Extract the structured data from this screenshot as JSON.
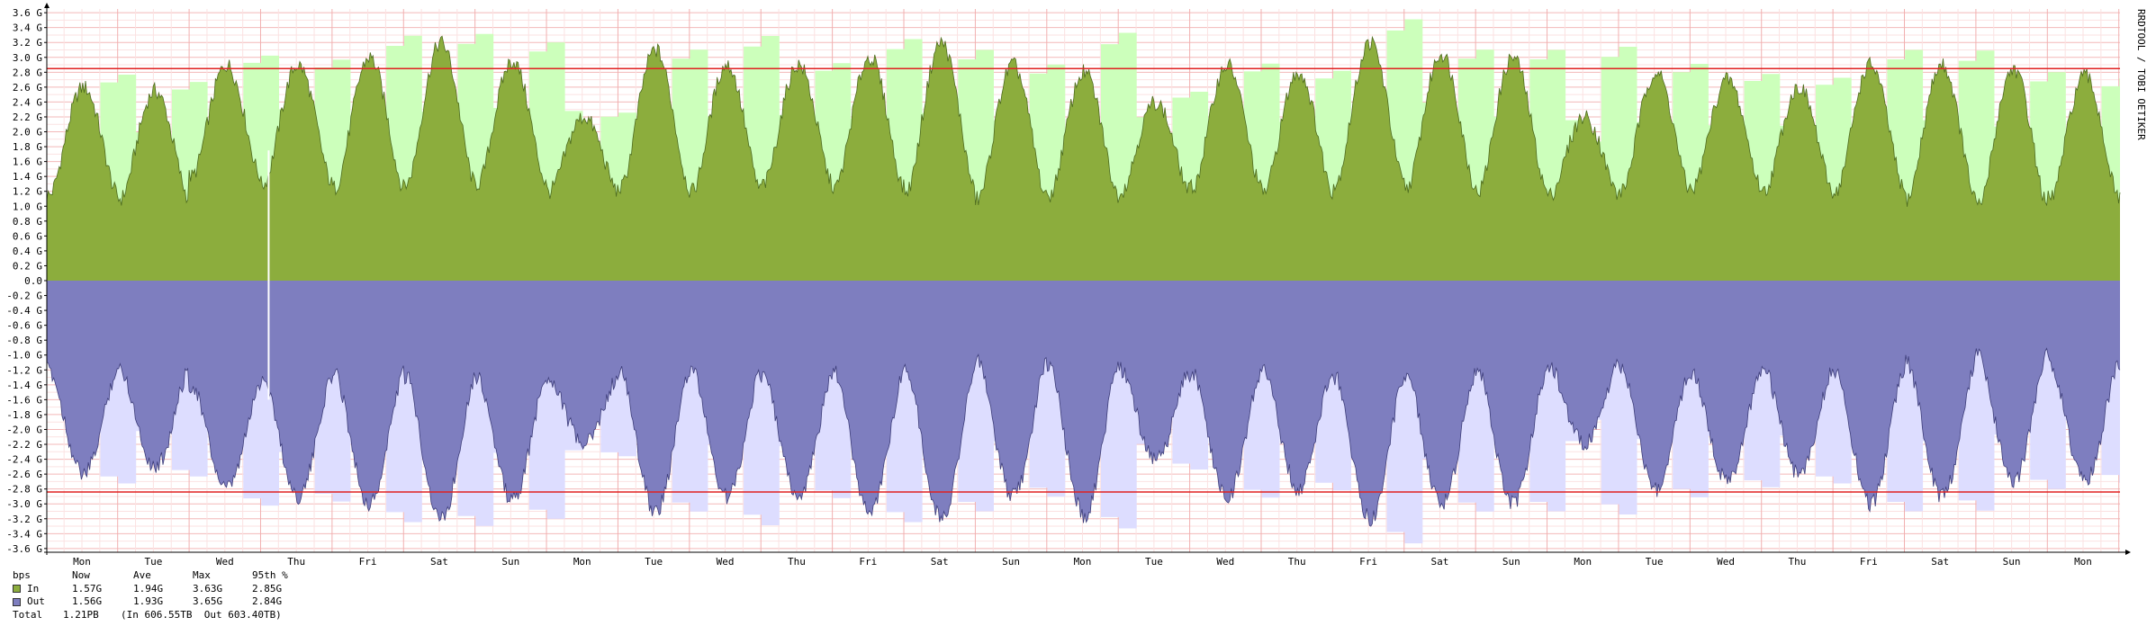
{
  "chart_data": {
    "type": "area",
    "unit": "bps",
    "y_ticks": [
      "3.6 G",
      "3.4 G",
      "3.2 G",
      "3.0 G",
      "2.8 G",
      "2.6 G",
      "2.4 G",
      "2.2 G",
      "2.0 G",
      "1.8 G",
      "1.6 G",
      "1.4 G",
      "1.2 G",
      "1.0 G",
      "0.8 G",
      "0.6 G",
      "0.4 G",
      "0.2 G",
      "0.0",
      "-0.2 G",
      "-0.4 G",
      "-0.6 G",
      "-0.8 G",
      "-1.0 G",
      "-1.2 G",
      "-1.4 G",
      "-1.6 G",
      "-1.8 G",
      "-2.0 G",
      "-2.2 G",
      "-2.4 G",
      "-2.6 G",
      "-2.8 G",
      "-3.0 G",
      "-3.2 G",
      "-3.4 G",
      "-3.6 G"
    ],
    "ylim": [
      -3.65,
      3.65
    ],
    "x_ticks": [
      "Mon",
      "Tue",
      "Wed",
      "Thu",
      "Fri",
      "Sat",
      "Sun",
      "Mon",
      "Tue",
      "Wed",
      "Thu",
      "Fri",
      "Sat",
      "Sun",
      "Mon",
      "Tue",
      "Wed",
      "Thu",
      "Fri",
      "Sat",
      "Sun",
      "Mon",
      "Tue",
      "Wed",
      "Thu",
      "Fri",
      "Sat",
      "Sun",
      "Mon"
    ],
    "days": 29.2,
    "percentile_lines": {
      "in": 2.85,
      "out": -2.84
    },
    "series": [
      {
        "name": "In",
        "color": "#8cad3d",
        "max_color": "#ccffbb",
        "daily_peak": [
          2.6,
          2.55,
          2.9,
          2.9,
          3.0,
          3.2,
          2.95,
          2.2,
          3.1,
          2.9,
          2.9,
          3.0,
          3.2,
          2.9,
          2.8,
          2.4,
          2.9,
          2.8,
          3.2,
          3.05,
          3.0,
          2.2,
          2.8,
          2.7,
          2.6,
          2.9,
          2.9,
          2.85,
          2.75
        ],
        "daily_trough": [
          1.15,
          1.1,
          1.4,
          1.3,
          1.25,
          1.3,
          1.3,
          1.2,
          1.25,
          1.2,
          1.3,
          1.25,
          1.2,
          1.1,
          1.15,
          1.2,
          1.25,
          1.2,
          1.3,
          1.25,
          1.2,
          1.15,
          1.2,
          1.25,
          1.2,
          1.2,
          1.1,
          1.0,
          1.1
        ],
        "daily_max": [
          2.85,
          2.75,
          3.1,
          3.05,
          3.4,
          3.42,
          3.3,
          2.3,
          3.2,
          3.4,
          3.0,
          3.35,
          3.2,
          3.0,
          3.45,
          2.6,
          3.0,
          2.9,
          3.63,
          3.2,
          3.2,
          3.25,
          3.0,
          2.85,
          2.8,
          3.2,
          3.2,
          2.9,
          2.8
        ]
      },
      {
        "name": "Out",
        "color": "#7e7ebf",
        "max_color": "#ddddff",
        "daily_peak": [
          -2.6,
          -2.5,
          -2.8,
          -2.9,
          -3.0,
          -3.2,
          -2.95,
          -2.2,
          -3.1,
          -2.9,
          -2.9,
          -3.1,
          -3.2,
          -2.9,
          -3.15,
          -2.4,
          -2.9,
          -2.8,
          -3.2,
          -3.0,
          -3.0,
          -2.2,
          -2.8,
          -2.7,
          -2.6,
          -3.0,
          -2.9,
          -2.7,
          -2.7
        ],
        "daily_trough": [
          -1.2,
          -1.2,
          -1.4,
          -1.3,
          -1.25,
          -1.3,
          -1.3,
          -1.3,
          -1.25,
          -1.2,
          -1.3,
          -1.25,
          -1.2,
          -1.1,
          -1.15,
          -1.2,
          -1.25,
          -1.2,
          -1.3,
          -1.25,
          -1.2,
          -1.15,
          -1.2,
          -1.25,
          -1.2,
          -1.2,
          -1.1,
          -1.0,
          -1.1
        ],
        "daily_max": [
          -2.8,
          -2.7,
          -3.1,
          -3.05,
          -3.35,
          -3.4,
          -3.3,
          -2.4,
          -3.2,
          -3.4,
          -3.0,
          -3.35,
          -3.2,
          -3.0,
          -3.45,
          -2.6,
          -3.0,
          -2.9,
          -3.65,
          -3.2,
          -3.2,
          -3.25,
          -3.0,
          -2.85,
          -2.8,
          -3.2,
          -3.2,
          -2.9,
          -2.8
        ]
      }
    ],
    "gap_at_day": 2.6,
    "side_label": "RRDTOOL / TOBI OETIKER"
  },
  "legend": {
    "header": {
      "unit": "bps",
      "now": "Now",
      "ave": "Ave",
      "max": "Max",
      "p95": "95th %"
    },
    "rows": [
      {
        "label": "In",
        "now": "1.57G",
        "ave": "1.94G",
        "max": "3.63G",
        "p95": "2.85G",
        "color": "#8cad3d"
      },
      {
        "label": "Out",
        "now": "1.56G",
        "ave": "1.93G",
        "max": "3.65G",
        "p95": "2.84G",
        "color": "#7e7ebf"
      }
    ],
    "total": {
      "label": "Total",
      "value": "1.21PB",
      "detail": "(In 606.55TB  Out 603.40TB)"
    }
  }
}
